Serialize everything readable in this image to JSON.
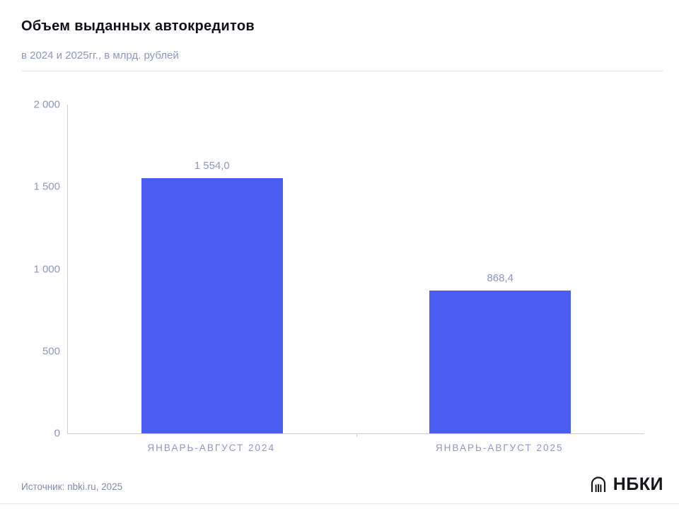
{
  "header": {
    "title": "Объем выданных автокредитов",
    "subtitle": "в 2024 и 2025гг., в млрд. рублей"
  },
  "footer": {
    "source": "Источник: nbki.ru, 2025",
    "logo_text": "НБКИ"
  },
  "chart_data": {
    "type": "bar",
    "title": "Объем выданных автокредитов",
    "subtitle": "в 2024 и 2025гг., в млрд. рублей",
    "categories": [
      "ЯНВАРЬ-АВГУСТ 2024",
      "ЯНВАРЬ-АВГУСТ 2025"
    ],
    "values": [
      1554.0,
      868.4
    ],
    "value_labels": [
      "1 554,0",
      "868,4"
    ],
    "ylabel": "млрд. рублей",
    "ylim": [
      0,
      2000
    ],
    "yticks": [
      2000,
      1500,
      1000,
      500,
      0
    ],
    "ytick_labels": [
      "2 000",
      "1 500",
      "1 000",
      "500",
      "0"
    ],
    "grid": false,
    "legend": false,
    "bar_color": "#4a5cf2",
    "label_color": "#8e97c2",
    "axis_color": "#c9cfe6"
  }
}
